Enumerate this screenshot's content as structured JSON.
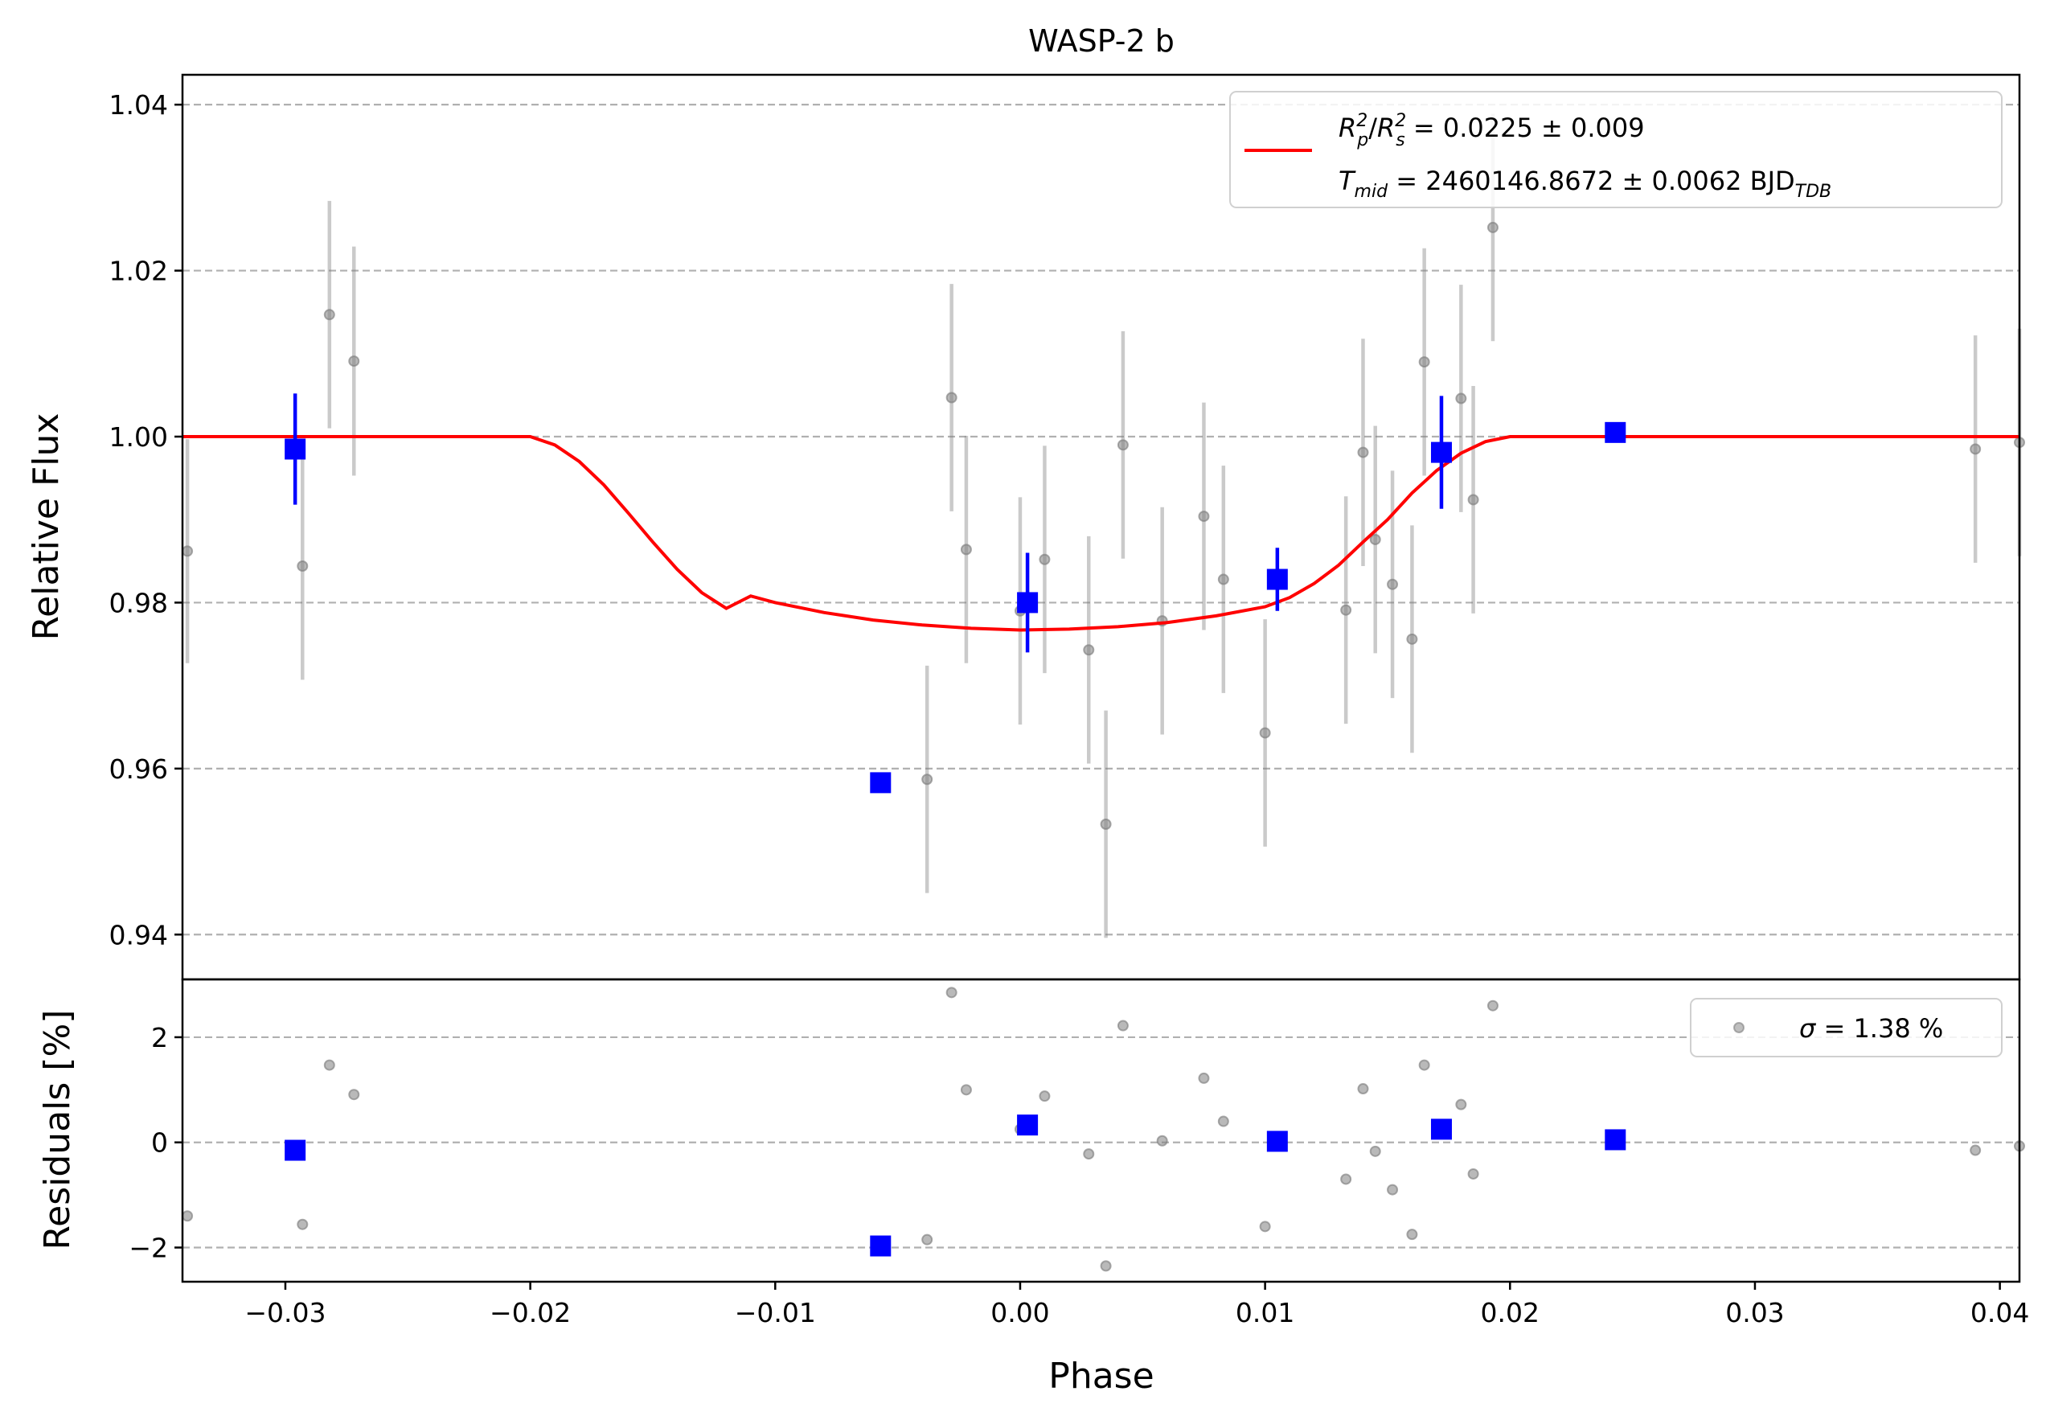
{
  "chart_data": [
    {
      "type": "scatter",
      "panel": "light-curve",
      "title": "WASP-2 b",
      "xlabel": "",
      "ylabel": "Relative Flux",
      "xlim": [
        -0.0342,
        0.0408
      ],
      "ylim": [
        0.9346,
        1.0436
      ],
      "yticks": [
        0.94,
        0.96,
        0.98,
        1.0,
        1.02,
        1.04
      ],
      "ytick_labels": [
        "0.94",
        "0.96",
        "0.98",
        "1.00",
        "1.02",
        "1.04"
      ],
      "grid": "horizontal dashed",
      "legend": {
        "placement": "top-right",
        "line1": "R_p^2/R_s^2 = 0.0225 ± 0.009",
        "line2": "T_mid = 2460146.8672 ± 0.0062 BJD_TDB",
        "line1_parts": {
          "rp": "R",
          "rp_sub": "p",
          "rp_sup": "2",
          "slash": "/",
          "rs": "R",
          "rs_sub": "s",
          "rs_sup": "2",
          "value": " = 0.0225 ± 0.009"
        },
        "line2_parts": {
          "t": "T",
          "t_sub": "mid",
          "value": " = 2460146.8672 ± 0.0062 BJD",
          "unit_sub": "TDB"
        }
      },
      "series": [
        {
          "kind": "raw",
          "color": "#808080",
          "points": [
            {
              "x": -0.034,
              "y": 0.9862,
              "err": 0.0135
            },
            {
              "x": -0.0282,
              "y": 1.0147,
              "err": 0.0137
            },
            {
              "x": -0.0272,
              "y": 1.0091,
              "err": 0.0138
            },
            {
              "x": -0.0293,
              "y": 0.9844,
              "err": 0.0137
            },
            {
              "x": -0.0038,
              "y": 0.9587,
              "err": 0.0137
            },
            {
              "x": -0.0028,
              "y": 1.0047,
              "err": 0.0137
            },
            {
              "x": -0.0022,
              "y": 0.9864,
              "err": 0.0137
            },
            {
              "x": 0.0,
              "y": 0.979,
              "err": 0.0137
            },
            {
              "x": 0.001,
              "y": 0.9852,
              "err": 0.0137
            },
            {
              "x": 0.0028,
              "y": 0.9743,
              "err": 0.0137
            },
            {
              "x": 0.0035,
              "y": 0.9533,
              "err": 0.0137
            },
            {
              "x": 0.0042,
              "y": 0.999,
              "err": 0.0137
            },
            {
              "x": 0.0058,
              "y": 0.9778,
              "err": 0.0137
            },
            {
              "x": 0.0075,
              "y": 0.9904,
              "err": 0.0137
            },
            {
              "x": 0.0083,
              "y": 0.9828,
              "err": 0.0137
            },
            {
              "x": 0.01,
              "y": 0.9643,
              "err": 0.0137
            },
            {
              "x": 0.0133,
              "y": 0.9791,
              "err": 0.0137
            },
            {
              "x": 0.014,
              "y": 0.9981,
              "err": 0.0137
            },
            {
              "x": 0.0145,
              "y": 0.9876,
              "err": 0.0137
            },
            {
              "x": 0.0152,
              "y": 0.9822,
              "err": 0.0137
            },
            {
              "x": 0.016,
              "y": 0.9756,
              "err": 0.0137
            },
            {
              "x": 0.0165,
              "y": 1.009,
              "err": 0.0137
            },
            {
              "x": 0.018,
              "y": 1.0046,
              "err": 0.0137
            },
            {
              "x": 0.0185,
              "y": 0.9924,
              "err": 0.0137
            },
            {
              "x": 0.0193,
              "y": 1.0252,
              "err": 0.0137
            },
            {
              "x": 0.039,
              "y": 0.9985,
              "err": 0.0137
            },
            {
              "x": 0.0408,
              "y": 0.9993,
              "err": 0.0137
            }
          ]
        },
        {
          "kind": "binned",
          "color": "#0000ff",
          "points": [
            {
              "x": -0.0296,
              "y": 0.9985,
              "err": 0.0067
            },
            {
              "x": -0.0057,
              "y": 0.9583,
              "err": 0.0
            },
            {
              "x": 0.0003,
              "y": 0.98,
              "err": 0.006
            },
            {
              "x": 0.0105,
              "y": 0.9828,
              "err": 0.0038
            },
            {
              "x": 0.0172,
              "y": 0.9981,
              "err": 0.0068
            },
            {
              "x": 0.0243,
              "y": 1.0005,
              "err": 0.0
            }
          ]
        },
        {
          "kind": "model",
          "color": "#ff0000",
          "x": [
            -0.0342,
            -0.02,
            -0.019,
            -0.018,
            -0.017,
            -0.016,
            -0.015,
            -0.014,
            -0.013,
            -0.012,
            -0.011,
            -0.01,
            -0.008,
            -0.006,
            -0.004,
            -0.002,
            0.0,
            0.002,
            0.004,
            0.006,
            0.008,
            0.01,
            0.011,
            0.012,
            0.013,
            0.014,
            0.015,
            0.016,
            0.017,
            0.018,
            0.019,
            0.02,
            0.0408
          ],
          "y": [
            1.0,
            1.0,
            0.999,
            0.997,
            0.9942,
            0.9908,
            0.9873,
            0.984,
            0.9812,
            0.9793,
            0.9808,
            0.98,
            0.9788,
            0.9779,
            0.9773,
            0.9769,
            0.9767,
            0.9768,
            0.9771,
            0.9776,
            0.9784,
            0.9795,
            0.9806,
            0.9823,
            0.9845,
            0.9873,
            0.99,
            0.9932,
            0.9959,
            0.998,
            0.9994,
            1.0,
            1.0
          ]
        }
      ]
    },
    {
      "type": "scatter",
      "panel": "residuals",
      "xlabel": "Phase",
      "ylabel": "Residuals [%]",
      "xlim": [
        -0.0342,
        0.0408
      ],
      "ylim": [
        -2.65,
        3.1
      ],
      "xticks": [
        -0.03,
        -0.02,
        -0.01,
        0.0,
        0.01,
        0.02,
        0.03,
        0.04
      ],
      "xtick_labels": [
        "−0.03",
        "−0.02",
        "−0.01",
        "0.00",
        "0.01",
        "0.02",
        "0.03",
        "0.04"
      ],
      "yticks": [
        -2,
        0,
        2
      ],
      "ytick_labels": [
        "−2",
        "0",
        "2"
      ],
      "grid": "horizontal dashed",
      "legend": {
        "placement": "top-right",
        "sigma": "σ",
        "label": " = 1.38 %"
      },
      "series": [
        {
          "kind": "raw",
          "color": "#808080",
          "points": [
            {
              "x": -0.034,
              "y": -1.4
            },
            {
              "x": -0.0282,
              "y": 1.47
            },
            {
              "x": -0.0272,
              "y": 0.91
            },
            {
              "x": -0.0293,
              "y": -1.56
            },
            {
              "x": -0.0038,
              "y": -1.85
            },
            {
              "x": -0.0028,
              "y": 2.85
            },
            {
              "x": -0.0022,
              "y": 1.0
            },
            {
              "x": 0.0,
              "y": 0.25
            },
            {
              "x": 0.001,
              "y": 0.88
            },
            {
              "x": 0.0028,
              "y": -0.22
            },
            {
              "x": 0.0035,
              "y": -2.35
            },
            {
              "x": 0.0042,
              "y": 2.22
            },
            {
              "x": 0.0058,
              "y": 0.03
            },
            {
              "x": 0.0075,
              "y": 1.22
            },
            {
              "x": 0.0083,
              "y": 0.4
            },
            {
              "x": 0.01,
              "y": -1.6
            },
            {
              "x": 0.0133,
              "y": -0.7
            },
            {
              "x": 0.014,
              "y": 1.02
            },
            {
              "x": 0.0145,
              "y": -0.17
            },
            {
              "x": 0.0152,
              "y": -0.9
            },
            {
              "x": 0.016,
              "y": -1.75
            },
            {
              "x": 0.0165,
              "y": 1.47
            },
            {
              "x": 0.018,
              "y": 0.72
            },
            {
              "x": 0.0185,
              "y": -0.6
            },
            {
              "x": 0.0193,
              "y": 2.6
            },
            {
              "x": 0.039,
              "y": -0.15
            },
            {
              "x": 0.0408,
              "y": -0.07
            }
          ]
        },
        {
          "kind": "binned",
          "color": "#0000ff",
          "points": [
            {
              "x": -0.0296,
              "y": -0.15
            },
            {
              "x": -0.0057,
              "y": -1.97
            },
            {
              "x": 0.0003,
              "y": 0.33
            },
            {
              "x": 0.0105,
              "y": 0.02
            },
            {
              "x": 0.0172,
              "y": 0.25
            },
            {
              "x": 0.0243,
              "y": 0.05
            }
          ]
        }
      ]
    }
  ]
}
